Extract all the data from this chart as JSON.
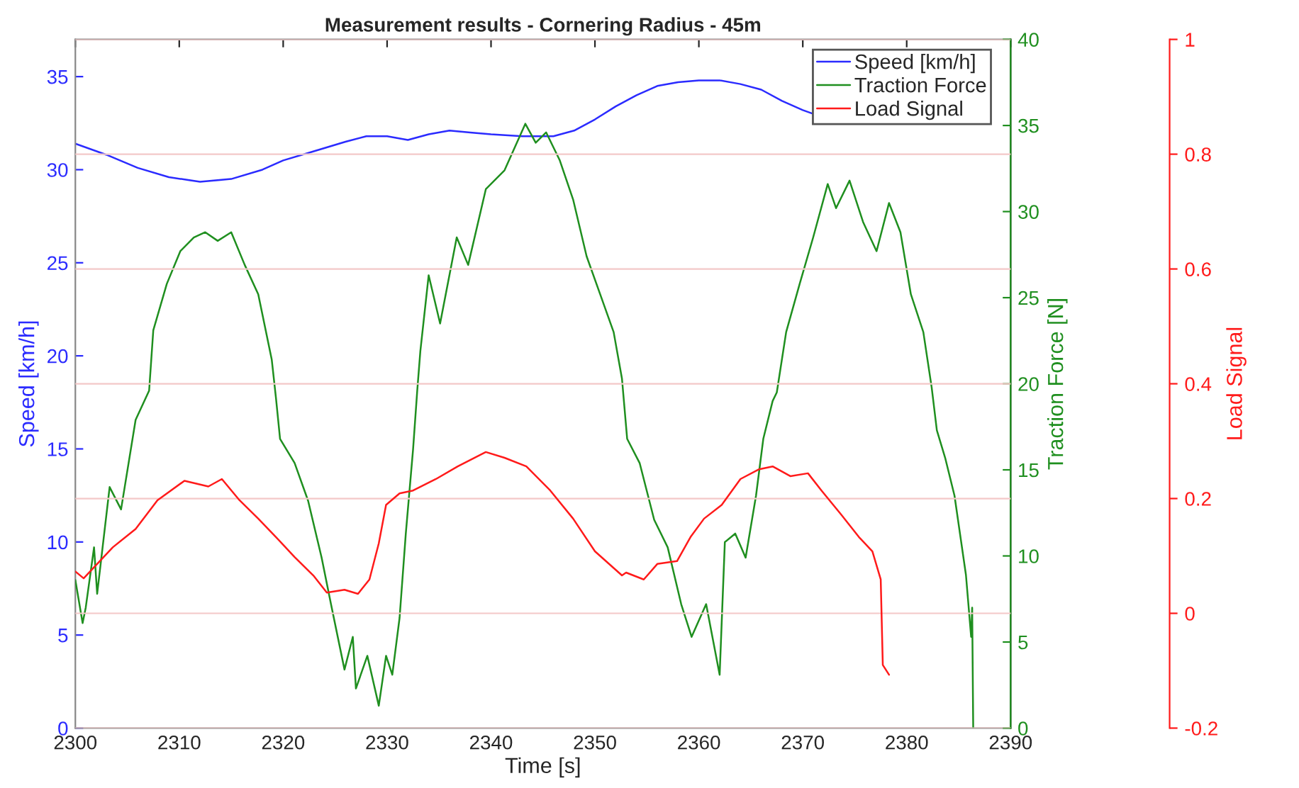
{
  "chart_data": {
    "type": "line",
    "title": "Measurement results - Cornering Radius - 45m",
    "xlabel": "Time [s]",
    "ylabel": "Speed [km/h]",
    "y2label": "Traction Force [N]",
    "y3label": "Load Signal",
    "xlim": [
      2300,
      2390
    ],
    "xticks": [
      2300,
      2310,
      2320,
      2330,
      2340,
      2350,
      2360,
      2370,
      2380,
      2390
    ],
    "ylim": [
      0,
      37
    ],
    "yticks": [
      0,
      5,
      10,
      15,
      20,
      25,
      30,
      35
    ],
    "y2lim": [
      0,
      40
    ],
    "y2ticks": [
      0,
      5,
      10,
      15,
      20,
      25,
      30,
      35,
      40
    ],
    "y3lim": [
      -0.2,
      1
    ],
    "y3ticks": [
      -0.2,
      0,
      0.2,
      0.4,
      0.6,
      0.8,
      1
    ],
    "grid": "y3",
    "legend": "top right",
    "line_style": "solid",
    "series": [
      {
        "name": "Speed [km/h]",
        "color": "#2b2bff",
        "axis": "y",
        "x": [
          2300,
          2303,
          2306,
          2309,
          2312,
          2315,
          2318,
          2320,
          2323,
          2326,
          2328,
          2330,
          2332,
          2334,
          2336,
          2338,
          2340,
          2343,
          2346,
          2348,
          2350,
          2352,
          2354,
          2356,
          2358,
          2360,
          2362,
          2364,
          2366,
          2368,
          2370,
          2371
        ],
        "values": [
          31.4,
          30.8,
          30.1,
          29.6,
          29.35,
          29.5,
          30.0,
          30.5,
          31.0,
          31.5,
          31.8,
          31.8,
          31.6,
          31.9,
          32.1,
          32.0,
          31.9,
          31.8,
          31.8,
          32.1,
          32.7,
          33.4,
          34.0,
          34.5,
          34.7,
          34.8,
          34.8,
          34.6,
          34.3,
          33.7,
          33.2,
          33.0
        ]
      },
      {
        "name": "Traction Force",
        "color": "#1f8f1f",
        "axis": "y2",
        "x": [
          2300,
          2300.7,
          2301,
          2301.8,
          2302.1,
          2303.3,
          2304.4,
          2305.8,
          2307.1,
          2307.5,
          2308.8,
          2310.1,
          2311.4,
          2312.5,
          2313.7,
          2315,
          2316.3,
          2317.6,
          2318.9,
          2319.3,
          2319.7,
          2321.1,
          2322.4,
          2323.7,
          2324.6,
          2325.9,
          2326.7,
          2327,
          2328.1,
          2329.2,
          2329.9,
          2330.5,
          2331.2,
          2331.8,
          2332.5,
          2332.9,
          2333.2,
          2334,
          2335.1,
          2336.7,
          2337.8,
          2339.5,
          2341.3,
          2343.3,
          2344.3,
          2345.3,
          2346.6,
          2347.9,
          2349.2,
          2350.5,
          2351.8,
          2352.6,
          2353.1,
          2354.3,
          2355.7,
          2357,
          2358.3,
          2359.3,
          2360.7,
          2362,
          2362.5,
          2363.5,
          2364.5,
          2365.5,
          2366.2,
          2367.1,
          2367.5,
          2368.4,
          2369.7,
          2371,
          2372.4,
          2373.2,
          2374.5,
          2375.8,
          2377.1,
          2378.3,
          2379.4,
          2380.4,
          2381.6,
          2382.4,
          2382.9,
          2383.7,
          2384.6,
          2385.7,
          2386.2,
          2386.3,
          2386.4
        ],
        "values": [
          8.6,
          6.1,
          7.0,
          10.5,
          7.8,
          14.0,
          12.7,
          17.9,
          19.6,
          23.1,
          25.8,
          27.7,
          28.5,
          28.8,
          28.3,
          28.8,
          26.9,
          25.2,
          21.4,
          19.2,
          16.8,
          15.4,
          13.2,
          9.9,
          7.2,
          3.4,
          5.3,
          2.3,
          4.2,
          1.3,
          4.2,
          3.1,
          6.4,
          11.3,
          16.2,
          19.6,
          21.9,
          26.3,
          23.5,
          28.5,
          26.9,
          31.3,
          32.4,
          35.1,
          34.0,
          34.6,
          33.0,
          30.7,
          27.4,
          25.2,
          23.0,
          20.3,
          16.8,
          15.4,
          12.1,
          10.5,
          7.2,
          5.3,
          7.2,
          3.1,
          10.8,
          11.3,
          9.9,
          13.5,
          16.8,
          19.0,
          19.5,
          23.0,
          25.8,
          28.5,
          31.6,
          30.2,
          31.8,
          29.4,
          27.7,
          30.5,
          28.8,
          25.2,
          23.0,
          19.8,
          17.3,
          15.7,
          13.5,
          8.9,
          5.3,
          7.0,
          0
        ]
      },
      {
        "name": "Load Signal",
        "color": "#ff1a1a",
        "axis": "y3",
        "x": [
          2300,
          2300.8,
          2303.6,
          2305.8,
          2307.9,
          2310.5,
          2312.8,
          2314.1,
          2315.8,
          2317.6,
          2319.3,
          2321.1,
          2322.9,
          2324.2,
          2325.9,
          2327.2,
          2328.3,
          2329.2,
          2329.9,
          2331.2,
          2332.5,
          2334.7,
          2336.8,
          2339.5,
          2341.3,
          2343.4,
          2345.7,
          2347.9,
          2350,
          2352.6,
          2353,
          2354.7,
          2356,
          2357.9,
          2359.2,
          2360.5,
          2362.2,
          2364,
          2365.8,
          2367.1,
          2368.8,
          2370.5,
          2371.8,
          2373.7,
          2375.4,
          2376.7,
          2377.5,
          2377.7,
          2378.3
        ],
        "values": [
          0.073,
          0.061,
          0.115,
          0.147,
          0.197,
          0.231,
          0.221,
          0.234,
          0.197,
          0.165,
          0.133,
          0.098,
          0.066,
          0.036,
          0.041,
          0.034,
          0.059,
          0.122,
          0.189,
          0.209,
          0.214,
          0.234,
          0.256,
          0.281,
          0.271,
          0.256,
          0.214,
          0.165,
          0.108,
          0.066,
          0.071,
          0.059,
          0.086,
          0.091,
          0.133,
          0.165,
          0.189,
          0.234,
          0.251,
          0.256,
          0.239,
          0.244,
          0.214,
          0.172,
          0.133,
          0.108,
          0.059,
          -0.09,
          -0.107
        ]
      }
    ]
  }
}
